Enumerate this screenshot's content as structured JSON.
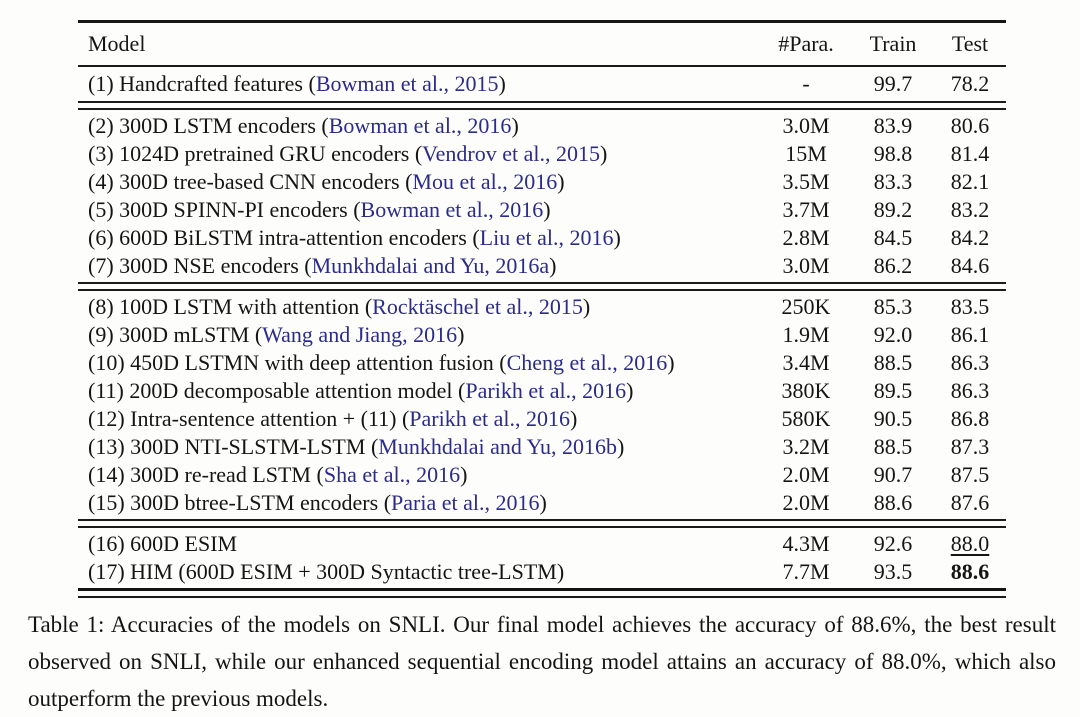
{
  "colors": {
    "citation": "#2b2b8a",
    "text": "#151515",
    "background": "#fdfdfb"
  },
  "table": {
    "columns": {
      "model": "Model",
      "para": "#Para.",
      "train": "Train",
      "test": "Test"
    },
    "sections": [
      {
        "rows": [
          {
            "model": "(1) Handcrafted features",
            "cite": "Bowman et al., 2015",
            "para": "-",
            "train": "99.7",
            "test": "78.2",
            "test_style": null
          }
        ]
      },
      {
        "rows": [
          {
            "model": "(2) 300D LSTM encoders",
            "cite": "Bowman et al., 2016",
            "para": "3.0M",
            "train": "83.9",
            "test": "80.6",
            "test_style": null
          },
          {
            "model": "(3) 1024D pretrained GRU encoders",
            "cite": "Vendrov et al., 2015",
            "para": "15M",
            "train": "98.8",
            "test": "81.4",
            "test_style": null
          },
          {
            "model": "(4) 300D tree-based CNN encoders",
            "cite": "Mou et al., 2016",
            "para": "3.5M",
            "train": "83.3",
            "test": "82.1",
            "test_style": null
          },
          {
            "model": "(5) 300D SPINN-PI encoders",
            "cite": "Bowman et al., 2016",
            "para": "3.7M",
            "train": "89.2",
            "test": "83.2",
            "test_style": null
          },
          {
            "model": "(6) 600D BiLSTM intra-attention encoders",
            "cite": "Liu et al., 2016",
            "para": "2.8M",
            "train": "84.5",
            "test": "84.2",
            "test_style": null
          },
          {
            "model": "(7) 300D NSE encoders",
            "cite": "Munkhdalai and Yu, 2016a",
            "para": "3.0M",
            "train": "86.2",
            "test": "84.6",
            "test_style": null
          }
        ]
      },
      {
        "rows": [
          {
            "model": "(8) 100D LSTM with attention",
            "cite": "Rocktäschel et al., 2015",
            "para": "250K",
            "train": "85.3",
            "test": "83.5",
            "test_style": null
          },
          {
            "model": "(9) 300D mLSTM",
            "cite": "Wang and Jiang, 2016",
            "para": "1.9M",
            "train": "92.0",
            "test": "86.1",
            "test_style": null
          },
          {
            "model": "(10) 450D LSTMN with deep attention fusion",
            "cite": "Cheng et al., 2016",
            "para": "3.4M",
            "train": "88.5",
            "test": "86.3",
            "test_style": null
          },
          {
            "model": "(11) 200D decomposable attention model",
            "cite": "Parikh et al., 2016",
            "para": "380K",
            "train": "89.5",
            "test": "86.3",
            "test_style": null
          },
          {
            "model": "(12) Intra-sentence attention + (11)",
            "cite": "Parikh et al., 2016",
            "para": "580K",
            "train": "90.5",
            "test": "86.8",
            "test_style": null
          },
          {
            "model": "(13) 300D NTI-SLSTM-LSTM",
            "cite": "Munkhdalai and Yu, 2016b",
            "para": "3.2M",
            "train": "88.5",
            "test": "87.3",
            "test_style": null
          },
          {
            "model": "(14) 300D re-read LSTM",
            "cite": "Sha et al., 2016",
            "para": "2.0M",
            "train": "90.7",
            "test": "87.5",
            "test_style": null
          },
          {
            "model": "(15) 300D btree-LSTM encoders",
            "cite": "Paria et al., 2016",
            "para": "2.0M",
            "train": "88.6",
            "test": "87.6",
            "test_style": null
          }
        ]
      },
      {
        "rows": [
          {
            "model": "(16) 600D ESIM",
            "cite": null,
            "para": "4.3M",
            "train": "92.6",
            "test": "88.0",
            "test_style": "underline"
          },
          {
            "model": "(17) HIM (600D ESIM + 300D Syntactic tree-LSTM)",
            "cite": null,
            "para": "7.7M",
            "train": "93.5",
            "test": "88.6",
            "test_style": "bold"
          }
        ]
      }
    ]
  },
  "caption": {
    "text": "Table 1: Accuracies of the models on SNLI. Our final model achieves the accuracy of 88.6%, the best result observed on SNLI, while our enhanced sequential encoding model attains an accuracy of 88.0%, which also outperform the previous models."
  }
}
